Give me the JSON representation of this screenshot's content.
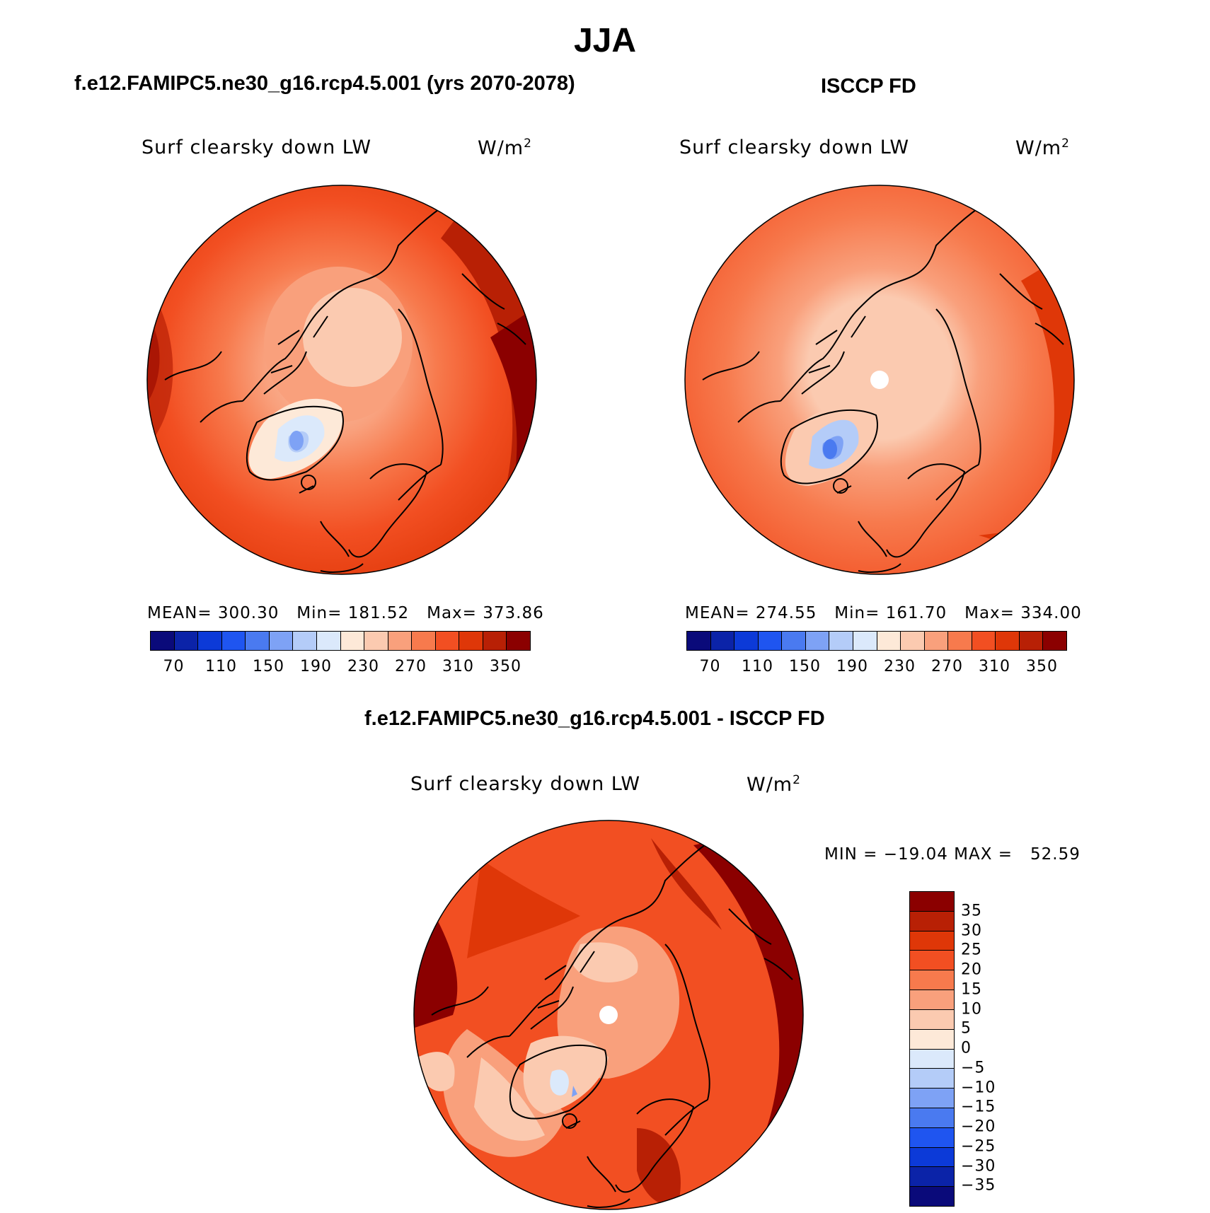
{
  "title": "JJA",
  "panels": {
    "left": {
      "title": "f.e12.FAMIPC5.ne30_g16.rcp4.5.001 (yrs 2070-2078)",
      "variable": "Surf clearsky down LW",
      "units_base": "W/m",
      "units_exp": "2",
      "stats": "MEAN= 300.30   Min= 181.52   Max= 373.86"
    },
    "right": {
      "title": "ISCCP FD",
      "variable": "Surf clearsky down LW",
      "units_base": "W/m",
      "units_exp": "2",
      "stats": "MEAN= 274.55   Min= 161.70   Max= 334.00"
    },
    "diff": {
      "title": "f.e12.FAMIPC5.ne30_g16.rcp4.5.001 - ISCCP FD",
      "variable": "Surf clearsky down LW",
      "units_base": "W/m",
      "units_exp": "2",
      "stats": "MIN = −19.04 MAX =   52.59"
    }
  },
  "colorbar_abs": {
    "labels": [
      "70",
      "110",
      "150",
      "190",
      "230",
      "270",
      "310",
      "350"
    ],
    "colors": [
      "#0a0a7a",
      "#0b23a8",
      "#0c3ad8",
      "#1f55f0",
      "#4a7af0",
      "#7ea2f5",
      "#b4ccf8",
      "#dbe9fb",
      "#fde9d8",
      "#fbcab0",
      "#f9a07c",
      "#f77a4d",
      "#f24f22",
      "#df3708",
      "#b82005",
      "#8b0000"
    ]
  },
  "colorbar_diff": {
    "labels": [
      "35",
      "30",
      "25",
      "20",
      "15",
      "10",
      "5",
      "0",
      "−5",
      "−10",
      "−15",
      "−20",
      "−25",
      "−30",
      "−35"
    ],
    "colors": [
      "#8b0000",
      "#b82005",
      "#df3708",
      "#f24f22",
      "#f77a4d",
      "#f9a07c",
      "#fbcab0",
      "#fde9d8",
      "#dbe9fb",
      "#b4ccf8",
      "#7ea2f5",
      "#4a7af0",
      "#1f55f0",
      "#0c3ad8",
      "#0b23a8",
      "#0a0a7a"
    ]
  }
}
